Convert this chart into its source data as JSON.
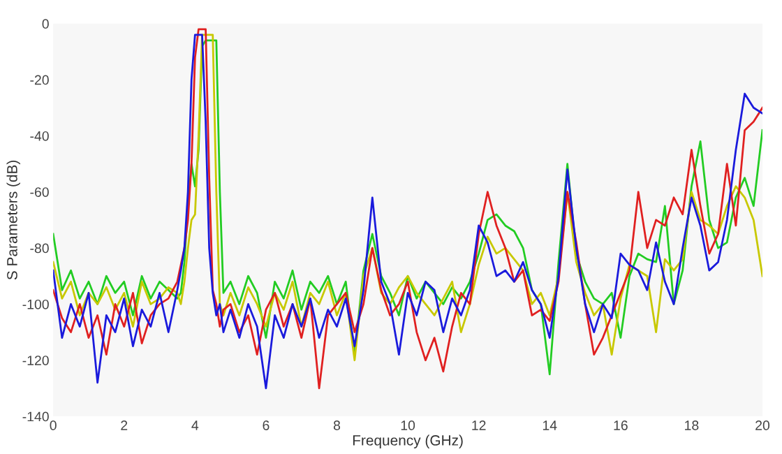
{
  "chart_data": {
    "type": "line",
    "xlabel": "Frequency (GHz)",
    "ylabel": "S Parameters (dB)",
    "xlim": [
      0,
      20
    ],
    "ylim": [
      -140,
      0
    ],
    "xticks": [
      0,
      2,
      4,
      6,
      8,
      10,
      12,
      14,
      16,
      18,
      20
    ],
    "yticks": [
      -140,
      -120,
      -100,
      -80,
      -60,
      -40,
      -20,
      0
    ],
    "grid": false,
    "legend": false,
    "marker": "none",
    "line_style": "solid",
    "x": [
      0,
      0.25,
      0.5,
      0.75,
      1,
      1.25,
      1.5,
      1.75,
      2,
      2.25,
      2.5,
      2.75,
      3,
      3.25,
      3.5,
      3.6,
      3.7,
      3.8,
      3.9,
      4.0,
      4.1,
      4.2,
      4.3,
      4.4,
      4.5,
      4.6,
      4.7,
      4.8,
      5,
      5.25,
      5.5,
      5.75,
      6,
      6.25,
      6.5,
      6.75,
      7,
      7.25,
      7.5,
      7.75,
      8,
      8.25,
      8.5,
      8.75,
      9,
      9.25,
      9.5,
      9.75,
      10,
      10.25,
      10.5,
      10.75,
      11,
      11.25,
      11.5,
      11.75,
      12,
      12.25,
      12.5,
      12.75,
      13,
      13.25,
      13.5,
      13.75,
      14,
      14.25,
      14.5,
      14.75,
      15,
      15.25,
      15.5,
      15.75,
      16,
      16.25,
      16.5,
      16.75,
      17,
      17.25,
      17.5,
      17.75,
      18,
      18.25,
      18.5,
      18.75,
      19,
      19.25,
      19.5,
      19.75,
      20
    ],
    "series": [
      {
        "color": "#22cc22",
        "values": [
          -75,
          -95,
          -88,
          -98,
          -92,
          -100,
          -90,
          -96,
          -92,
          -104,
          -90,
          -98,
          -92,
          -95,
          -98,
          -96,
          -85,
          -65,
          -50,
          -58,
          -45,
          -8,
          -6,
          -6,
          -6,
          -6,
          -60,
          -96,
          -92,
          -100,
          -90,
          -96,
          -112,
          -92,
          -98,
          -88,
          -102,
          -92,
          -96,
          -90,
          -100,
          -92,
          -118,
          -88,
          -75,
          -90,
          -96,
          -104,
          -90,
          -98,
          -92,
          -96,
          -100,
          -94,
          -98,
          -92,
          -82,
          -70,
          -68,
          -72,
          -74,
          -80,
          -95,
          -100,
          -125,
          -85,
          -50,
          -82,
          -92,
          -98,
          -100,
          -96,
          -112,
          -90,
          -82,
          -84,
          -85,
          -65,
          -100,
          -88,
          -58,
          -42,
          -70,
          -80,
          -78,
          -62,
          -55,
          -65,
          -38
        ]
      },
      {
        "color": "#c8c800",
        "values": [
          -85,
          -98,
          -92,
          -104,
          -96,
          -100,
          -94,
          -102,
          -96,
          -108,
          -92,
          -100,
          -98,
          -94,
          -96,
          -100,
          -92,
          -80,
          -70,
          -68,
          -40,
          -4,
          -4,
          -4,
          -4,
          -60,
          -100,
          -104,
          -96,
          -104,
          -94,
          -100,
          -108,
          -96,
          -102,
          -92,
          -108,
          -96,
          -100,
          -92,
          -104,
          -96,
          -120,
          -90,
          -80,
          -96,
          -100,
          -94,
          -90,
          -96,
          -100,
          -104,
          -98,
          -92,
          -110,
          -100,
          -86,
          -76,
          -82,
          -80,
          -84,
          -88,
          -100,
          -96,
          -104,
          -90,
          -60,
          -85,
          -96,
          -104,
          -100,
          -118,
          -98,
          -86,
          -88,
          -90,
          -110,
          -84,
          -88,
          -84,
          -60,
          -70,
          -72,
          -75,
          -65,
          -58,
          -62,
          -70,
          -90
        ]
      },
      {
        "color": "#e02020",
        "values": [
          -95,
          -105,
          -110,
          -100,
          -112,
          -104,
          -118,
          -100,
          -108,
          -96,
          -114,
          -104,
          -100,
          -98,
          -92,
          -86,
          -80,
          -70,
          -50,
          -12,
          -2,
          -2,
          -2,
          -55,
          -95,
          -100,
          -108,
          -102,
          -100,
          -110,
          -104,
          -118,
          -102,
          -96,
          -108,
          -100,
          -112,
          -98,
          -130,
          -104,
          -100,
          -96,
          -110,
          -100,
          -80,
          -95,
          -104,
          -100,
          -92,
          -110,
          -120,
          -112,
          -124,
          -108,
          -96,
          -100,
          -75,
          -60,
          -72,
          -80,
          -92,
          -88,
          -104,
          -102,
          -106,
          -92,
          -60,
          -78,
          -100,
          -118,
          -112,
          -104,
          -96,
          -88,
          -60,
          -80,
          -70,
          -72,
          -62,
          -68,
          -45,
          -65,
          -82,
          -75,
          -50,
          -72,
          -38,
          -35,
          -30
        ]
      },
      {
        "color": "#1a1adc",
        "values": [
          -88,
          -112,
          -100,
          -108,
          -96,
          -128,
          -104,
          -110,
          -98,
          -115,
          -102,
          -108,
          -96,
          -110,
          -95,
          -88,
          -80,
          -60,
          -20,
          -4,
          -4,
          -4,
          -35,
          -80,
          -96,
          -104,
          -100,
          -110,
          -102,
          -112,
          -100,
          -108,
          -130,
          -104,
          -112,
          -100,
          -108,
          -98,
          -112,
          -102,
          -108,
          -98,
          -115,
          -95,
          -62,
          -92,
          -100,
          -118,
          -96,
          -104,
          -92,
          -95,
          -110,
          -98,
          -104,
          -95,
          -72,
          -78,
          -90,
          -88,
          -92,
          -85,
          -95,
          -100,
          -112,
          -90,
          -52,
          -80,
          -100,
          -110,
          -100,
          -105,
          -82,
          -86,
          -88,
          -95,
          -78,
          -92,
          -100,
          -80,
          -62,
          -72,
          -88,
          -85,
          -70,
          -45,
          -25,
          -30,
          -32
        ]
      }
    ]
  }
}
